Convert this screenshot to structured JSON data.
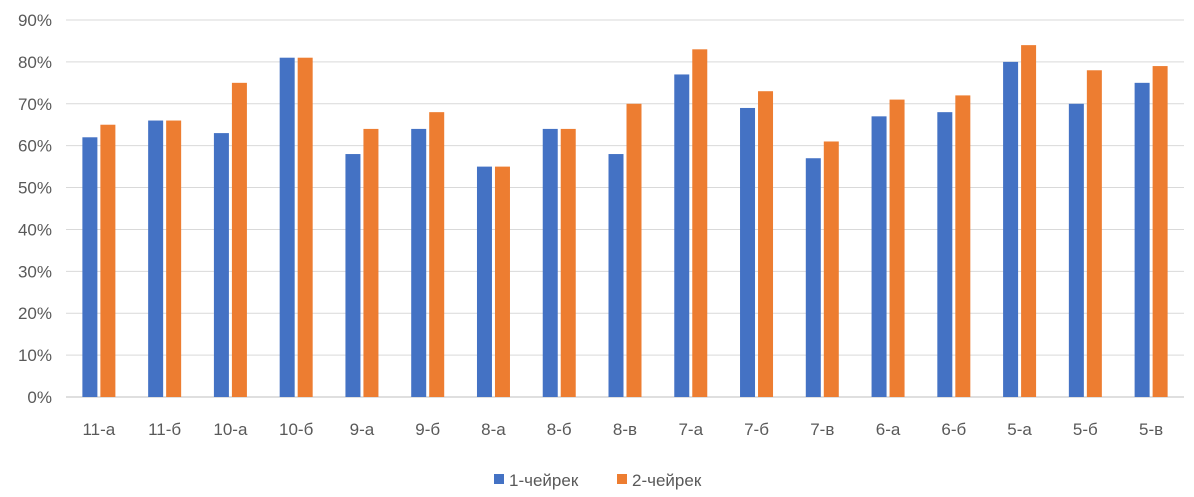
{
  "chart_data": {
    "type": "bar",
    "categories": [
      "11-а",
      "11-б",
      "10-а",
      "10-б",
      "9-а",
      "9-б",
      "8-а",
      "8-б",
      "8-в",
      "7-а",
      "7-б",
      "7-в",
      "6-а",
      "6-б",
      "5-а",
      "5-б",
      "5-в"
    ],
    "series": [
      {
        "name": "1-чейрек",
        "color": "#4472C4",
        "values": [
          62,
          66,
          63,
          81,
          58,
          64,
          55,
          64,
          58,
          77,
          69,
          57,
          67,
          68,
          80,
          70,
          75
        ]
      },
      {
        "name": "2-чейрек",
        "color": "#ED7D31",
        "values": [
          65,
          66,
          75,
          81,
          64,
          68,
          55,
          64,
          70,
          83,
          73,
          61,
          71,
          72,
          84,
          78,
          79
        ]
      }
    ],
    "y_ticks": [
      "0%",
      "10%",
      "20%",
      "30%",
      "40%",
      "50%",
      "60%",
      "70%",
      "80%",
      "90%"
    ],
    "ylim": [
      0,
      90
    ],
    "y_unit": "percent",
    "grid": true,
    "gridline_color": "#D9D9D9",
    "legend_position": "bottom"
  }
}
